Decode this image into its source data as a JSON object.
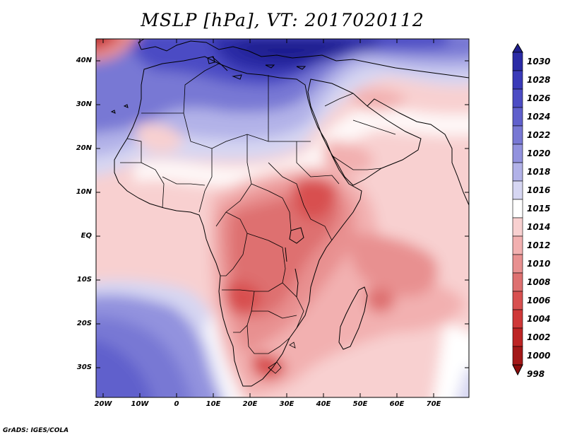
{
  "title": "MSLP [hPa], VT: 2017020112",
  "lat_labels": [
    "40N",
    "30N",
    "20N",
    "10N",
    "EQ",
    "10S",
    "20S",
    "30S"
  ],
  "lon_labels": [
    "20W",
    "10W",
    "0",
    "10E",
    "20E",
    "30E",
    "40E",
    "50E",
    "60E",
    "70E"
  ],
  "colorbar": {
    "levels": [
      "1030",
      "1028",
      "1026",
      "1024",
      "1022",
      "1020",
      "1018",
      "1016",
      "1015",
      "1014",
      "1012",
      "1010",
      "1008",
      "1006",
      "1004",
      "1002",
      "1000",
      "998"
    ],
    "colors": [
      "#1f1f8e",
      "#2b2ba6",
      "#3a3ab8",
      "#4c4cc4",
      "#6060cc",
      "#7878d4",
      "#9292de",
      "#b2b2e8",
      "#d6d6f2",
      "#ffffff",
      "#f8d0d0",
      "#f2b0b0",
      "#e89090",
      "#de7070",
      "#d85050",
      "#cf3838",
      "#bd2424",
      "#a31818",
      "#8c0c0c"
    ]
  },
  "credit": "GrADS: IGES/COLA"
}
